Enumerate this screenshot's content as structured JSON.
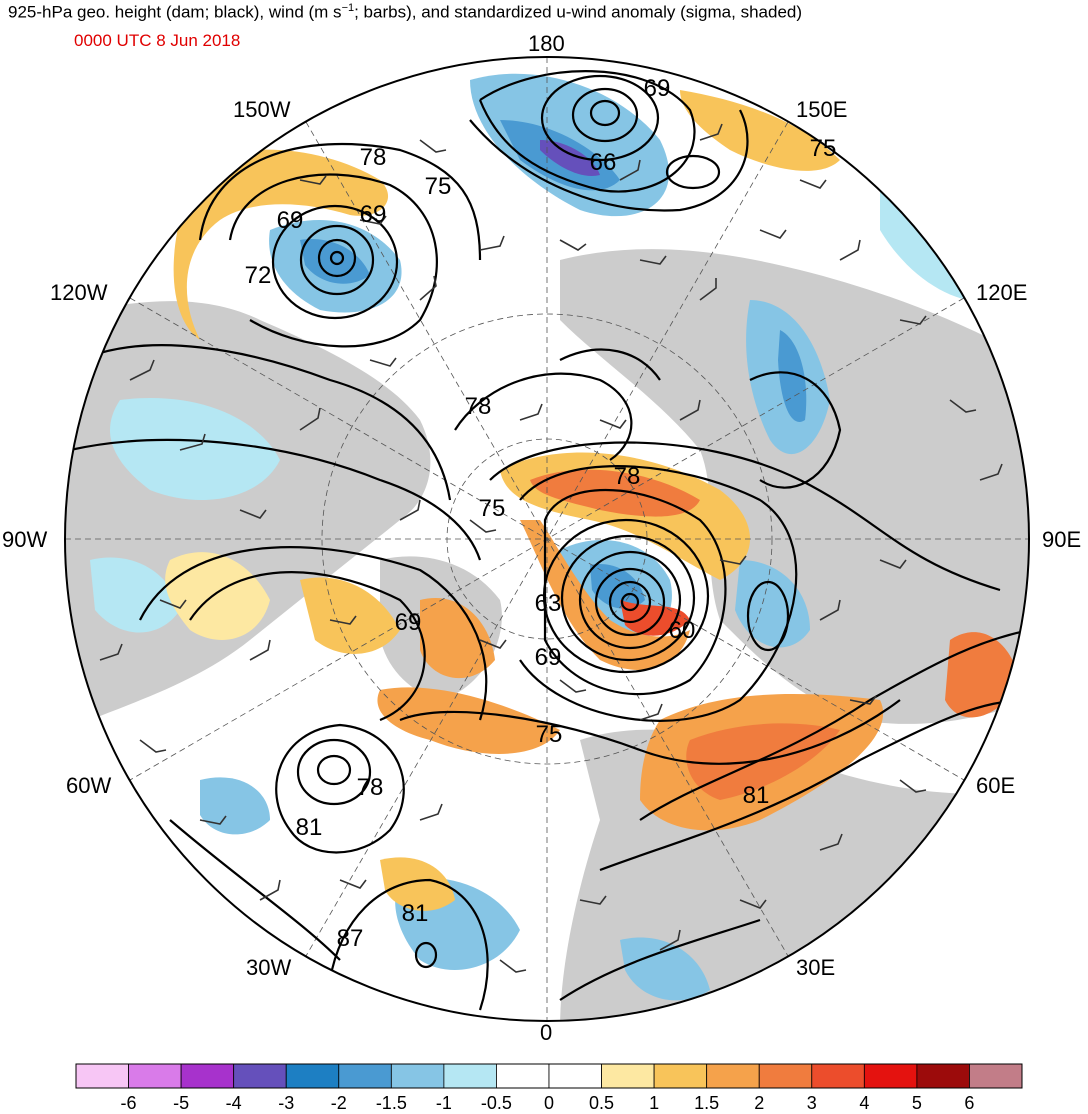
{
  "header": {
    "title_pre": "925-hPa geo. height (dam; black), wind (m s",
    "title_sup": "−1",
    "title_post": "; barbs), and standardized u-wind anomaly (sigma, shaded)",
    "subtitle": "0000 UTC 8 Jun 2018"
  },
  "longitude_labels": {
    "lon_180": "180",
    "lon_150w": "150W",
    "lon_150e": "150E",
    "lon_120w": "120W",
    "lon_120e": "120E",
    "lon_90w": "90W",
    "lon_90e": "90E",
    "lon_60w": "60W",
    "lon_60e": "60E",
    "lon_30w": "30W",
    "lon_30e": "30E",
    "lon_0": "0"
  },
  "contour_labels": [
    {
      "id": "c1",
      "text": "69"
    },
    {
      "id": "c2",
      "text": "75"
    },
    {
      "id": "c3",
      "text": "66"
    },
    {
      "id": "c4",
      "text": "78"
    },
    {
      "id": "c5",
      "text": "75"
    },
    {
      "id": "c6",
      "text": "69"
    },
    {
      "id": "c7",
      "text": "69"
    },
    {
      "id": "c8",
      "text": "72"
    },
    {
      "id": "c9",
      "text": "78"
    },
    {
      "id": "c10",
      "text": "78"
    },
    {
      "id": "c11",
      "text": "75"
    },
    {
      "id": "c12",
      "text": "63"
    },
    {
      "id": "c13",
      "text": "60"
    },
    {
      "id": "c14",
      "text": "69"
    },
    {
      "id": "c15",
      "text": "69"
    },
    {
      "id": "c16",
      "text": "75"
    },
    {
      "id": "c17",
      "text": "81"
    },
    {
      "id": "c18",
      "text": "78"
    },
    {
      "id": "c19",
      "text": "81"
    },
    {
      "id": "c20",
      "text": "81"
    },
    {
      "id": "c21",
      "text": "87"
    }
  ],
  "colorbar": {
    "colors": [
      "#f7c6f5",
      "#d97be9",
      "#a732cc",
      "#6550bb",
      "#1d7fc3",
      "#4a9ad2",
      "#86c5e5",
      "#b5e7f3",
      "#ffffff",
      "#ffffff",
      "#fde8a2",
      "#f8c45a",
      "#f5a24b",
      "#f07c3e",
      "#ec4d2c",
      "#e4120f",
      "#9c0b0b",
      "#c27d88"
    ],
    "ticks": [
      "-6",
      "-5",
      "-4",
      "-3",
      "-2",
      "-1.5",
      "-1",
      "-0.5",
      "0",
      "0.5",
      "1",
      "1.5",
      "2",
      "3",
      "4",
      "5",
      "6"
    ]
  }
}
